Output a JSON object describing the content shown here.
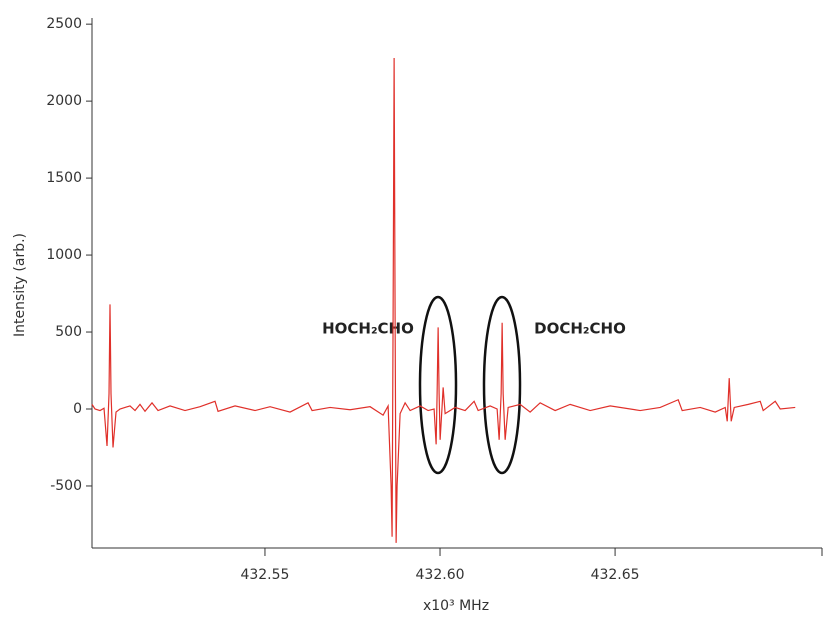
{
  "chart_data": {
    "type": "line",
    "xlabel": "x10³ MHz",
    "ylabel": "Intensity (arb.)",
    "annotations": [
      "HOCH₂CHO",
      "DOCH₂CHO"
    ],
    "x": [
      432.5006,
      432.50146,
      432.50289,
      432.50403,
      432.50489,
      432.50546,
      432.50574,
      432.50603,
      432.5066,
      432.50746,
      432.5086,
      432.51146,
      432.51289,
      432.51431,
      432.51574,
      432.51774,
      432.51946,
      432.52289,
      432.52717,
      432.53146,
      432.53574,
      432.5366,
      432.54146,
      432.54717,
      432.55146,
      432.55717,
      432.56231,
      432.56346,
      432.5686,
      432.57431,
      432.58003,
      432.58374,
      432.58517,
      432.58603,
      432.58631,
      432.5866,
      432.58689,
      432.58717,
      432.58746,
      432.58774,
      432.5886,
      432.59003,
      432.59146,
      432.59431,
      432.5966,
      432.59831,
      432.59889,
      432.59917,
      432.59946,
      432.59974,
      432.60003,
      432.6006,
      432.60089,
      432.60146,
      432.60431,
      432.60717,
      432.60974,
      432.61089,
      432.61431,
      432.61631,
      432.61689,
      432.61746,
      432.61774,
      432.61803,
      432.6186,
      432.61946,
      432.62289,
      432.62574,
      432.6286,
      432.63289,
      432.63717,
      432.64289,
      432.6486,
      432.65717,
      432.66289,
      432.66803,
      432.66917,
      432.67431,
      432.6786,
      432.68146,
      432.68203,
      432.6826,
      432.68317,
      432.68403,
      432.68803,
      432.69146,
      432.69231,
      432.69574,
      432.69717,
      432.70146
    ],
    "series": [
      {
        "color": "#e0302a",
        "values": [
          30,
          0,
          -10,
          5,
          -240,
          100,
          680,
          100,
          -250,
          -20,
          0,
          20,
          -10,
          30,
          -15,
          40,
          -10,
          20,
          -10,
          15,
          50,
          -15,
          20,
          -10,
          15,
          -20,
          40,
          -10,
          10,
          -5,
          15,
          -40,
          20,
          -500,
          -830,
          600,
          2280,
          600,
          -870,
          -500,
          -30,
          40,
          -10,
          20,
          -10,
          0,
          -230,
          100,
          530,
          100,
          -200,
          20,
          140,
          -30,
          10,
          -10,
          50,
          -10,
          20,
          0,
          -200,
          100,
          560,
          100,
          -200,
          10,
          30,
          -20,
          40,
          -10,
          30,
          -10,
          20,
          -10,
          10,
          60,
          -10,
          10,
          -20,
          10,
          -80,
          200,
          -80,
          10,
          30,
          50,
          -10,
          50,
          0,
          10
        ]
      }
    ],
    "xlim": [
      432.5006,
      432.7091
    ],
    "ylim": [
      -903,
      2540
    ],
    "xticks": [
      432.55,
      {
        "value": 432.6,
        "label": "432.60"
      },
      432.65
    ],
    "yticks": [
      -500,
      0,
      500,
      1000,
      1500,
      2000,
      2500
    ]
  }
}
